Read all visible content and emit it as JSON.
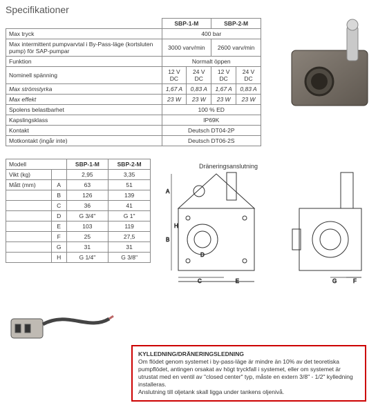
{
  "title": "Specifikationer",
  "colors": {
    "border": "#888888",
    "noticeBorder": "#c00000",
    "text": "#333333"
  },
  "spec": {
    "colhead": [
      "SBP-1-M",
      "SBP-2-M"
    ],
    "rows": {
      "maxTryck": {
        "label": "Max tryck",
        "value": "400 bar"
      },
      "maxInterm": {
        "label": "Max intermittent pumpvarvtal i By-Pass-läge (kortsluten pump) för SAP-pumpar",
        "c1": "3000 varv/min",
        "c2": "2600 varv/min"
      },
      "funktion": {
        "label": "Funktion",
        "value": "Normalt öppen"
      },
      "nominell": {
        "label": "Nominell spänning",
        "a": "12 V DC",
        "b": "24 V DC",
        "c": "12 V DC",
        "d": "24 V DC"
      },
      "maxStrom": {
        "label": "Max strömstyrka",
        "a": "1,67 A",
        "b": "0,83 A",
        "c": "1,67 A",
        "d": "0,83 A"
      },
      "maxEffekt": {
        "label": "Max effekt",
        "a": "23 W",
        "b": "23 W",
        "c": "23 W",
        "d": "23 W"
      },
      "spolens": {
        "label": "Spolens belastbarhet",
        "value": "100 % ED"
      },
      "kapsling": {
        "label": "Kapslingsklass",
        "value": "IP69K"
      },
      "kontakt": {
        "label": "Kontakt",
        "value": "Deutsch DT04-2P"
      },
      "motkontakt": {
        "label": "Motkontakt (ingår inte)",
        "value": "Deutsch DT06-2S"
      }
    }
  },
  "dim": {
    "head": {
      "modell": "Modell",
      "c1": "SBP-1-M",
      "c2": "SBP-2-M"
    },
    "rows": [
      {
        "k": "Vikt (kg)",
        "m": "",
        "a": "2,95",
        "b": "3,35"
      },
      {
        "k": "Mått (mm)",
        "m": "A",
        "a": "63",
        "b": "51"
      },
      {
        "k": "",
        "m": "B",
        "a": "126",
        "b": "139"
      },
      {
        "k": "",
        "m": "C",
        "a": "36",
        "b": "41"
      },
      {
        "k": "",
        "m": "D",
        "a": "G 3/4\"",
        "b": "G 1\""
      },
      {
        "k": "",
        "m": "E",
        "a": "103",
        "b": "119"
      },
      {
        "k": "",
        "m": "F",
        "a": "25",
        "b": "27,5"
      },
      {
        "k": "",
        "m": "G",
        "a": "31",
        "b": "31"
      },
      {
        "k": "",
        "m": "H",
        "a": "G 1/4\"",
        "b": "G 3/8\""
      }
    ]
  },
  "diagramLabel": "Dräneringsanslutning",
  "diagramDims": [
    "A",
    "B",
    "C",
    "D",
    "E",
    "F",
    "G",
    "H"
  ],
  "notice": {
    "heading": "KYLLEDNING/DRÄNERINGSLEDNING",
    "body": "Om flödet genom systemet i by-pass-läge är mindre än 10% av det teoretiska pumpflödet, antingen orsakat av högt tryckfall i systemet, eller om systemet är utrustat med en ventil av \"closed center\" typ, måste en extern 3/8\" - 1/2\" kylledning installeras.",
    "foot": "Anslutning till oljetank skall ligga under tankens oljenivå."
  }
}
